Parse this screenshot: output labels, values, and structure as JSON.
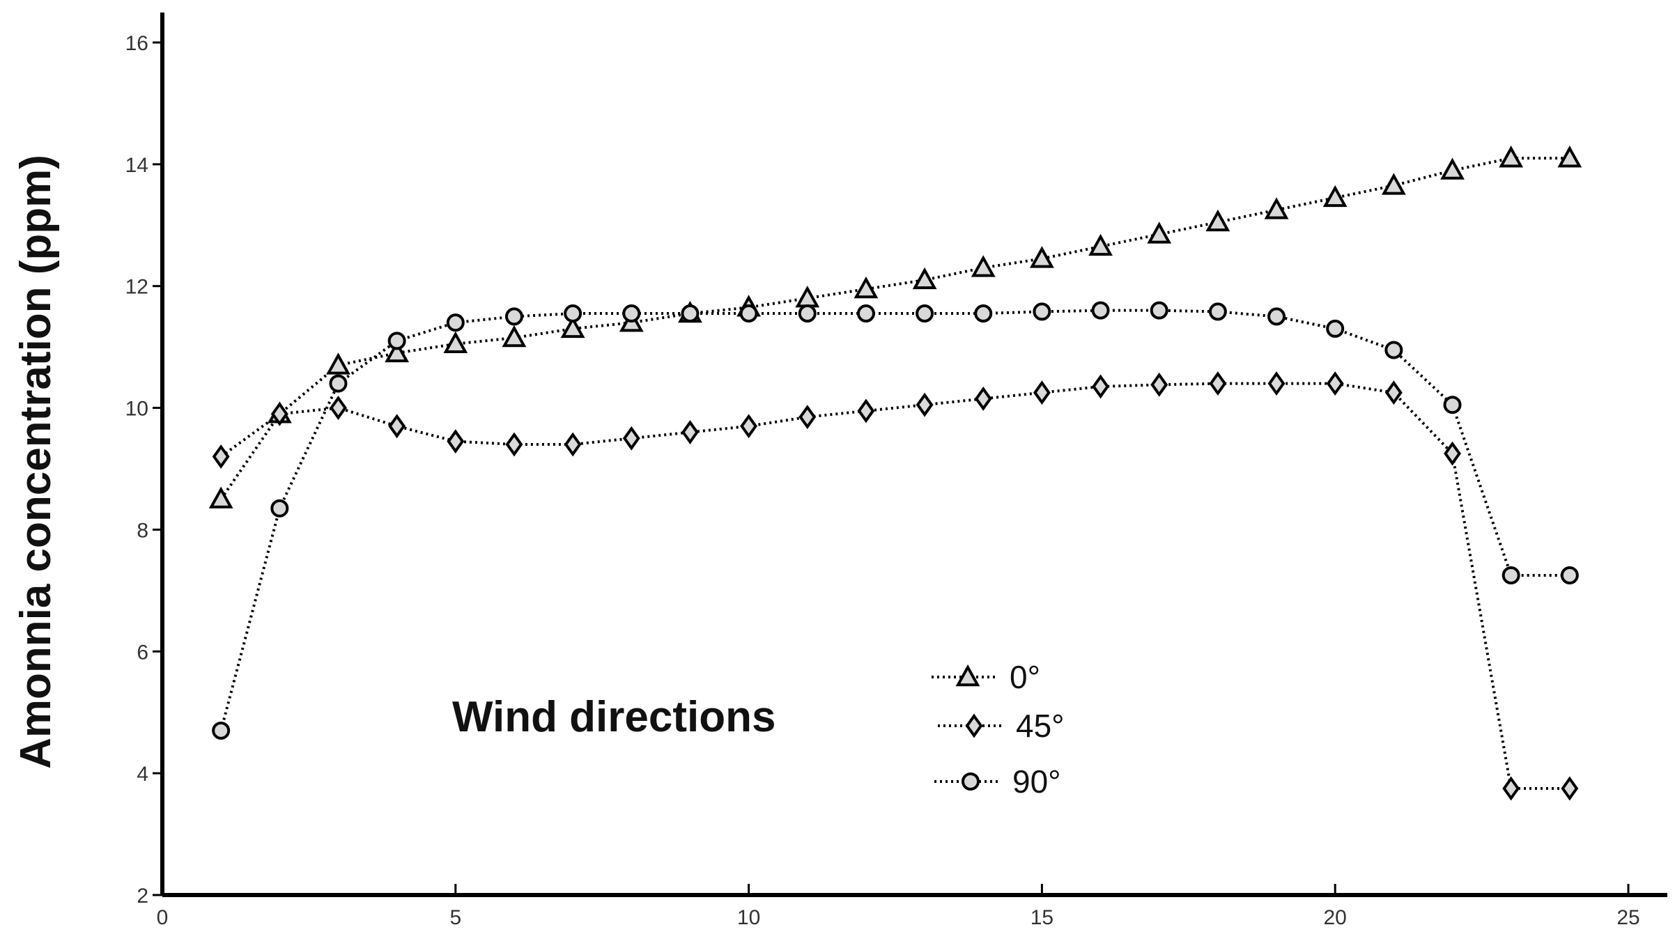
{
  "chart_data": {
    "type": "line",
    "title": "",
    "xlabel": "",
    "ylabel": "Amonnia concentration (ppm)",
    "xlim": [
      0,
      25
    ],
    "ylim": [
      2,
      16
    ],
    "xticks": [
      0,
      5,
      10,
      15,
      20,
      25
    ],
    "yticks": [
      2,
      4,
      6,
      8,
      10,
      12,
      14,
      16
    ],
    "grid": false,
    "legend": {
      "title": "Wind directions",
      "placement": "bottom-center"
    },
    "x": [
      1,
      2,
      3,
      4,
      5,
      6,
      7,
      8,
      9,
      10,
      11,
      12,
      13,
      14,
      15,
      16,
      17,
      18,
      19,
      20,
      21,
      22,
      23,
      24
    ],
    "series": [
      {
        "name": "0°",
        "marker": "triangle",
        "color": "#000000",
        "values": [
          8.5,
          9.9,
          10.7,
          10.9,
          11.05,
          11.15,
          11.3,
          11.4,
          11.55,
          11.65,
          11.8,
          11.95,
          12.1,
          12.3,
          12.45,
          12.65,
          12.85,
          13.05,
          13.25,
          13.45,
          13.65,
          13.9,
          14.1,
          14.1
        ]
      },
      {
        "name": "45°",
        "marker": "diamond",
        "color": "#000000",
        "values": [
          9.2,
          9.9,
          10.0,
          9.7,
          9.45,
          9.4,
          9.4,
          9.5,
          9.6,
          9.7,
          9.85,
          9.95,
          10.05,
          10.15,
          10.25,
          10.35,
          10.38,
          10.4,
          10.4,
          10.4,
          10.25,
          9.25,
          3.75,
          3.75
        ]
      },
      {
        "name": "90°",
        "marker": "circle",
        "color": "#000000",
        "values": [
          4.7,
          8.35,
          10.4,
          11.1,
          11.4,
          11.5,
          11.55,
          11.55,
          11.55,
          11.55,
          11.55,
          11.55,
          11.55,
          11.55,
          11.58,
          11.6,
          11.6,
          11.58,
          11.5,
          11.3,
          10.95,
          10.05,
          7.25,
          7.25
        ]
      }
    ]
  }
}
